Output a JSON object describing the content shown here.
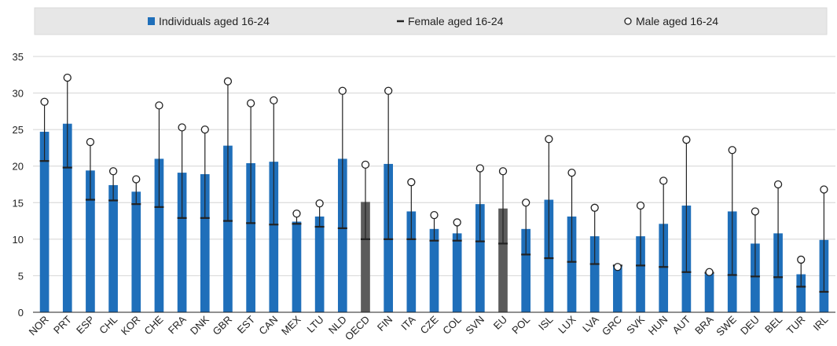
{
  "chart_data": {
    "type": "bar",
    "categories": [
      "NOR",
      "PRT",
      "ESP",
      "CHL",
      "KOR",
      "CHE",
      "FRA",
      "DNK",
      "GBR",
      "EST",
      "CAN",
      "MEX",
      "LTU",
      "NLD",
      "OECD",
      "FIN",
      "ITA",
      "CZE",
      "COL",
      "SVN",
      "EU",
      "POL",
      "ISL",
      "LUX",
      "LVA",
      "GRC",
      "SVK",
      "HUN",
      "AUT",
      "BRA",
      "SWE",
      "DEU",
      "BEL",
      "TUR",
      "IRL"
    ],
    "highlighted": [
      "OECD",
      "EU"
    ],
    "series": [
      {
        "name": "Individuals aged 16-24",
        "marker": "bar",
        "values": [
          24.7,
          25.8,
          19.4,
          17.4,
          16.5,
          21.0,
          19.1,
          18.9,
          22.8,
          20.4,
          20.6,
          12.4,
          13.1,
          21.0,
          15.1,
          20.3,
          13.8,
          11.4,
          10.8,
          14.8,
          14.2,
          11.4,
          15.4,
          13.1,
          10.4,
          6.3,
          10.4,
          12.1,
          14.6,
          5.3,
          13.8,
          9.4,
          10.8,
          5.2,
          9.9
        ]
      },
      {
        "name": "Female aged 16-24",
        "marker": "dash",
        "values": [
          20.7,
          19.8,
          15.4,
          15.3,
          14.8,
          14.4,
          12.9,
          12.9,
          12.5,
          12.2,
          12.0,
          12.1,
          11.7,
          11.5,
          10.0,
          10.0,
          10.0,
          9.8,
          9.8,
          9.7,
          9.4,
          7.9,
          7.4,
          6.9,
          6.6,
          6.4,
          6.4,
          6.2,
          5.5,
          5.4,
          5.1,
          4.9,
          4.8,
          3.5,
          2.8
        ]
      },
      {
        "name": "Male aged 16-24",
        "marker": "circle",
        "values": [
          28.8,
          32.1,
          23.3,
          19.3,
          18.2,
          28.3,
          25.3,
          25.0,
          31.6,
          28.6,
          29.0,
          13.5,
          14.9,
          30.3,
          20.2,
          30.3,
          17.8,
          13.3,
          12.3,
          19.7,
          19.3,
          15.0,
          23.7,
          19.1,
          14.3,
          6.2,
          14.6,
          18.0,
          23.6,
          5.5,
          22.2,
          13.8,
          17.5,
          7.2,
          16.8
        ]
      }
    ],
    "ylim": [
      0,
      35
    ],
    "yticks": [
      0,
      5,
      10,
      15,
      20,
      25,
      30,
      35
    ],
    "legend_position": "top",
    "grid": true,
    "colors": {
      "bar": "#1f6fba",
      "bar_highlight": "#5b5b5b",
      "line": "#222222",
      "grid": "#d4d4d4",
      "legend_bg": "#e7e7e7"
    }
  }
}
